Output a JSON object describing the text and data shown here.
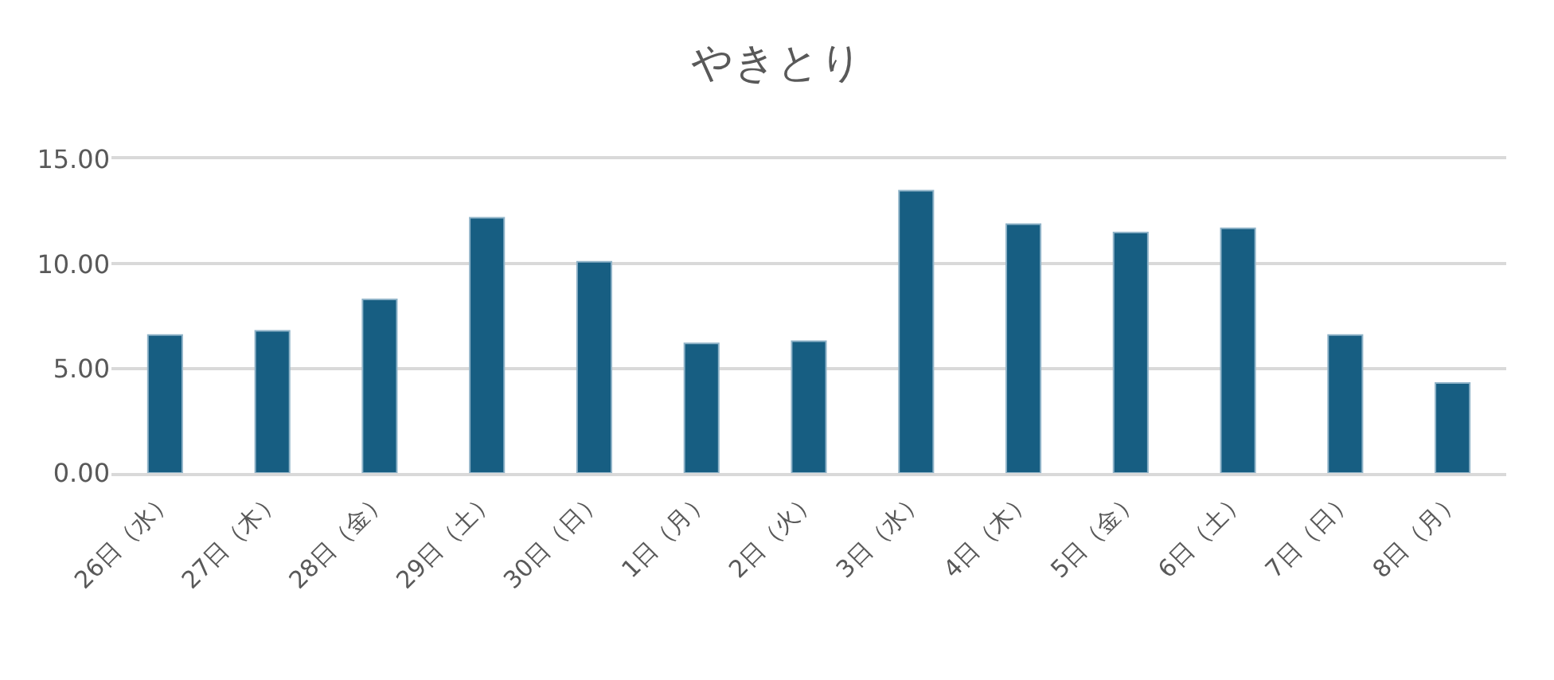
{
  "chart_data": {
    "type": "bar",
    "title": "やきとり",
    "categories": [
      "26日（水）",
      "27日（木）",
      "28日（金）",
      "29日（土）",
      "30日（日）",
      "1日（月）",
      "2日（火）",
      "3日（水）",
      "4日（木）",
      "5日（金）",
      "6日（土）",
      "7日（日）",
      "8日（月）"
    ],
    "values": [
      6.6,
      6.8,
      8.3,
      12.2,
      10.1,
      6.2,
      6.3,
      13.5,
      11.9,
      11.5,
      11.7,
      6.6,
      4.3
    ],
    "color": "#175e82",
    "ylim": [
      0,
      15
    ],
    "yticks": [
      {
        "value": 0,
        "label": "0.00"
      },
      {
        "value": 5,
        "label": "5.00"
      },
      {
        "value": 10,
        "label": "10.00"
      },
      {
        "value": 15,
        "label": "15.00"
      }
    ],
    "grid": "y"
  }
}
